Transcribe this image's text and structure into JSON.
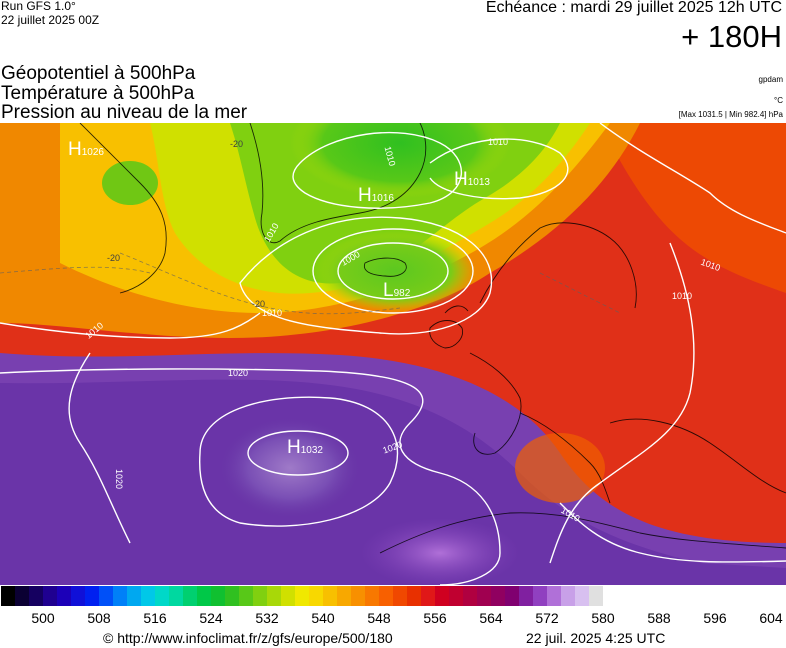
{
  "header": {
    "run": "Run GFS 1.0°",
    "run_date": "22 juillet 2025 00Z",
    "valid_time": "Echéance : mardi 29 juillet 2025 12h UTC",
    "lead_time": "+ 180H"
  },
  "parameters": [
    "Géopotentiel à 500hPa",
    "Température à 500hPa",
    "Pression au niveau de la mer"
  ],
  "units": {
    "geopotential": "gpdam",
    "temperature": "°C",
    "pressure_range": "[Max 1031.5 | Min 982.4] hPa"
  },
  "pressure_centers": [
    {
      "type": "H",
      "value": "1026"
    },
    {
      "type": "H",
      "value": "1016"
    },
    {
      "type": "H",
      "value": "1013"
    },
    {
      "type": "L",
      "value": "982"
    },
    {
      "type": "H",
      "value": "1032"
    }
  ],
  "isobar_labels": [
    "1010",
    "1010",
    "1010",
    "1000",
    "1010",
    "1010",
    "1010",
    "1020",
    "1020",
    "1020",
    "1010",
    "1010"
  ],
  "temperature_labels": [
    "-20",
    "-20",
    "-20"
  ],
  "colorbar": {
    "ticks": [
      "500",
      "508",
      "516",
      "524",
      "532",
      "540",
      "548",
      "556",
      "564",
      "572",
      "580",
      "588",
      "596",
      "604"
    ],
    "colors": [
      "#000000",
      "#0b0033",
      "#150060",
      "#1f0090",
      "#1c00b8",
      "#1010d8",
      "#0020f0",
      "#0050f8",
      "#0080f8",
      "#00a8f0",
      "#00c8e8",
      "#00d8c8",
      "#00d8a0",
      "#00d070",
      "#00c848",
      "#10c030",
      "#30c020",
      "#58c818",
      "#80d010",
      "#a8d808",
      "#d0e000",
      "#f0e800",
      "#f8d800",
      "#f8c000",
      "#f8a800",
      "#f89000",
      "#f87800",
      "#f86000",
      "#f04800",
      "#e83000",
      "#e01818",
      "#d00020",
      "#c00030",
      "#b00040",
      "#a00050",
      "#900060",
      "#800070",
      "#8020a0",
      "#9040c0",
      "#b070d8",
      "#c8a0e8",
      "#d8c0f0",
      "#e0e0e0",
      "#ffffff"
    ]
  },
  "footer": {
    "url": "© http://www.infoclimat.fr/z/gfs/europe/500/180",
    "issued": "22 juil. 2025  4:25 UTC"
  }
}
